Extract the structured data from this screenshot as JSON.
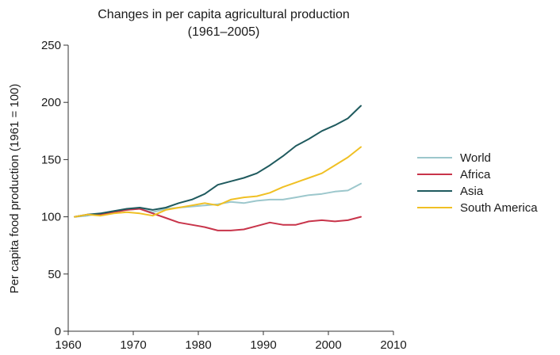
{
  "chart_data": {
    "type": "line",
    "title": "Changes in per capita agricultural production",
    "subtitle": "(1961–2005)",
    "xlabel": "",
    "ylabel": "Per capita food production (1961 = 100)",
    "xlim": [
      1960,
      2010
    ],
    "ylim": [
      0,
      250
    ],
    "xticks": [
      "1960",
      "1970",
      "1980",
      "1990",
      "2000",
      "2010"
    ],
    "yticks": [
      "0",
      "50",
      "100",
      "150",
      "200",
      "250"
    ],
    "grid": false,
    "legend_position": "right",
    "x": [
      1961,
      1963,
      1965,
      1967,
      1969,
      1971,
      1973,
      1975,
      1977,
      1979,
      1981,
      1983,
      1985,
      1987,
      1989,
      1991,
      1993,
      1995,
      1997,
      1999,
      2001,
      2003,
      2005
    ],
    "series": [
      {
        "name": "World",
        "color": "#9cc7cc",
        "values": [
          100,
          101,
          103,
          105,
          106,
          107,
          104,
          107,
          108,
          109,
          110,
          111,
          113,
          112,
          114,
          115,
          115,
          117,
          119,
          120,
          122,
          123,
          129
        ]
      },
      {
        "name": "Africa",
        "color": "#c8344a",
        "values": [
          100,
          102,
          102,
          104,
          106,
          107,
          103,
          99,
          95,
          93,
          91,
          88,
          88,
          89,
          92,
          95,
          93,
          93,
          96,
          97,
          96,
          97,
          100
        ]
      },
      {
        "name": "Asia",
        "color": "#1f5a5e",
        "values": [
          100,
          102,
          103,
          105,
          107,
          108,
          106,
          108,
          112,
          115,
          120,
          128,
          131,
          134,
          138,
          145,
          153,
          162,
          168,
          175,
          180,
          186,
          197
        ]
      },
      {
        "name": "South America",
        "color": "#f0c024",
        "values": [
          100,
          102,
          101,
          103,
          104,
          103,
          101,
          106,
          108,
          110,
          112,
          110,
          115,
          117,
          118,
          121,
          126,
          130,
          134,
          138,
          145,
          152,
          161
        ]
      }
    ]
  }
}
